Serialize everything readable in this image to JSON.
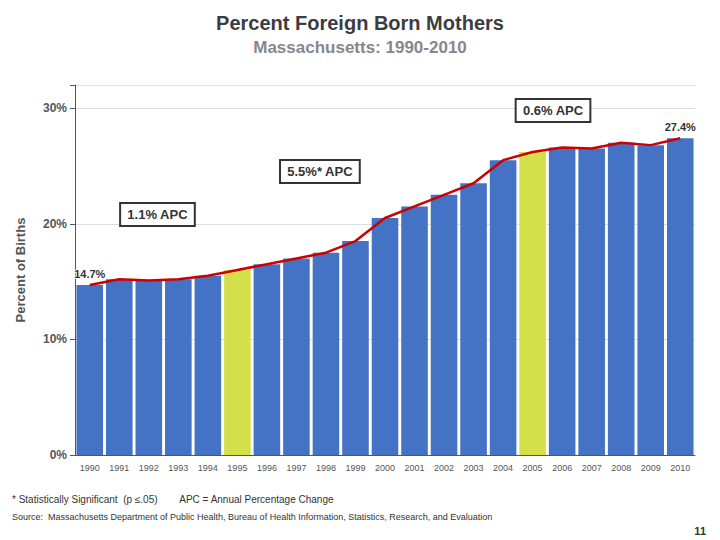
{
  "chart_data": {
    "type": "bar",
    "title": "Percent Foreign Born Mothers",
    "subtitle": "Massachusetts: 1990-2010",
    "ylabel": "Percent of Births",
    "categories": [
      "1990",
      "1991",
      "1992",
      "1993",
      "1994",
      "1995",
      "1996",
      "1997",
      "1998",
      "1999",
      "2000",
      "2001",
      "2002",
      "2003",
      "2004",
      "2005",
      "2006",
      "2007",
      "2008",
      "2009",
      "2010"
    ],
    "series": [
      {
        "type": "bar",
        "values": [
          14.7,
          15.2,
          15.1,
          15.2,
          15.5,
          16.0,
          16.5,
          17.0,
          17.5,
          18.5,
          20.5,
          21.5,
          22.5,
          23.5,
          25.5,
          26.2,
          26.6,
          26.5,
          27.0,
          26.8,
          27.4
        ],
        "value_labels": [
          "14.7%",
          null,
          null,
          null,
          null,
          null,
          null,
          null,
          null,
          null,
          null,
          null,
          null,
          null,
          null,
          null,
          null,
          null,
          null,
          null,
          "27.4%"
        ],
        "colors": [
          "#4472C4",
          "#4472C4",
          "#4472C4",
          "#4472C4",
          "#4472C4",
          "#d4e04a",
          "#4472C4",
          "#4472C4",
          "#4472C4",
          "#4472C4",
          "#4472C4",
          "#4472C4",
          "#4472C4",
          "#4472C4",
          "#4472C4",
          "#d4e04a",
          "#4472C4",
          "#4472C4",
          "#4472C4",
          "#4472C4",
          "#4472C4"
        ]
      },
      {
        "type": "line",
        "color": "#CC0000",
        "values": [
          14.7,
          15.2,
          15.1,
          15.2,
          15.5,
          16.0,
          16.5,
          17.0,
          17.5,
          18.5,
          20.5,
          21.5,
          22.5,
          23.5,
          25.5,
          26.2,
          26.6,
          26.5,
          27.0,
          26.8,
          27.4
        ]
      }
    ],
    "ylim": [
      0,
      32
    ],
    "yticks": [
      {
        "value": 0,
        "label": "0%"
      },
      {
        "value": 10,
        "label": "10%"
      },
      {
        "value": 20,
        "label": "20%"
      },
      {
        "value": 30,
        "label": "30%"
      }
    ],
    "grid": true,
    "annotations": [
      "1.1% APC",
      "5.5%* APC",
      "0.6% APC",
      "* Statistically Significant  (p ≤.05)        APC = Annual Percentage Change",
      "Source:  Massachusetts Department of Public Health, Bureau of Health Information, Statistics, Research, and Evaluation",
      "11"
    ]
  }
}
